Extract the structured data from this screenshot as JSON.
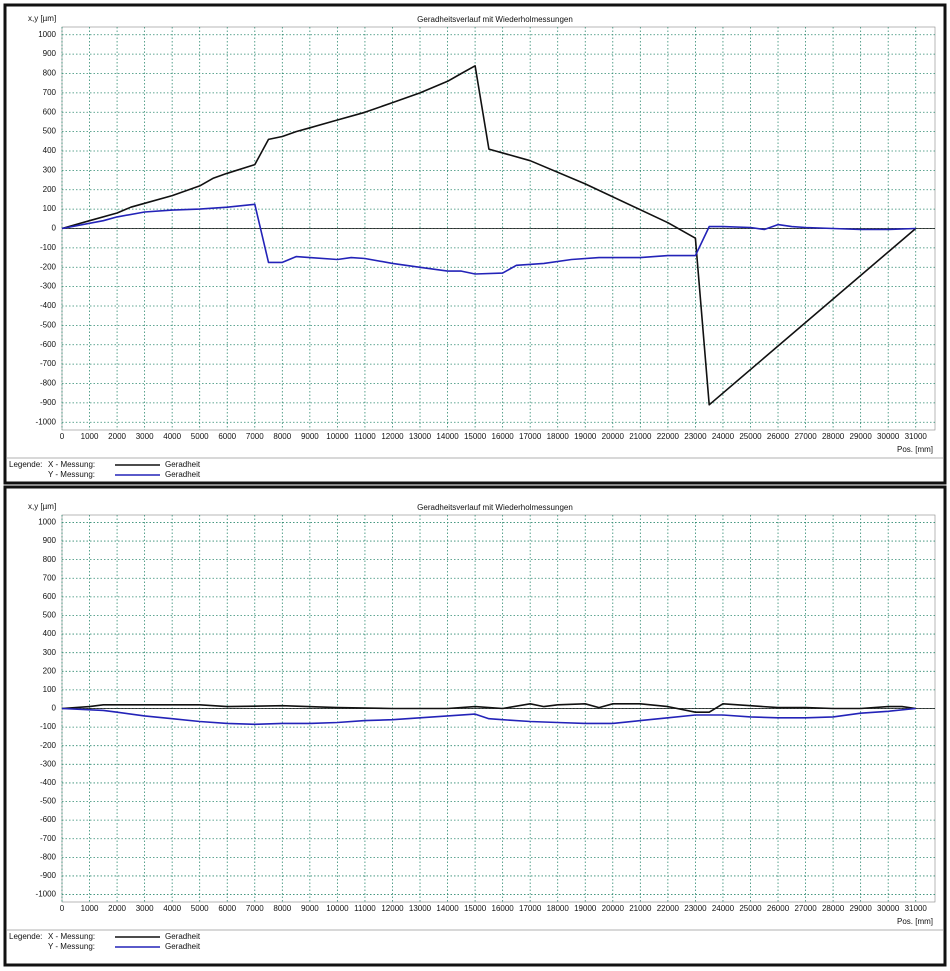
{
  "chart_data": [
    {
      "type": "line",
      "title": "Geradheitsverlauf mit Wiederholmessungen",
      "y_label": "x,y [µm]",
      "x_label": "Pos. [mm]",
      "legend_title": "Legende:",
      "grid": true,
      "xlim": [
        0,
        31700
      ],
      "ylim": [
        -1040,
        1040
      ],
      "xticks": [
        0,
        1000,
        2000,
        3000,
        4000,
        5000,
        6000,
        7000,
        8000,
        9000,
        10000,
        11000,
        12000,
        13000,
        14000,
        15000,
        16000,
        17000,
        18000,
        19000,
        20000,
        21000,
        22000,
        23000,
        24000,
        25000,
        26000,
        27000,
        28000,
        29000,
        30000,
        31000
      ],
      "yticks": [
        -1000,
        -900,
        -800,
        -700,
        -600,
        -500,
        -400,
        -300,
        -200,
        -100,
        0,
        100,
        200,
        300,
        400,
        500,
        600,
        700,
        800,
        900,
        1000
      ],
      "series": [
        {
          "name": "Geradheit",
          "measurement": "X - Messung:",
          "color": "#111111",
          "x": [
            0,
            1000,
            2000,
            2500,
            3000,
            4000,
            5000,
            5500,
            6000,
            7000,
            7500,
            8000,
            8500,
            9000,
            10000,
            11000,
            12000,
            13000,
            14000,
            14500,
            15000,
            15500,
            17000,
            19000,
            22000,
            23000,
            23500,
            31000
          ],
          "values": [
            0,
            40,
            80,
            110,
            130,
            170,
            220,
            260,
            285,
            330,
            460,
            475,
            500,
            520,
            560,
            600,
            650,
            700,
            760,
            800,
            840,
            410,
            350,
            230,
            30,
            -50,
            -910,
            0
          ]
        },
        {
          "name": "Geradheit",
          "measurement": "Y - Messung:",
          "color": "#2323b8",
          "x": [
            0,
            1500,
            2000,
            3000,
            4000,
            5000,
            6000,
            7000,
            7500,
            8000,
            8500,
            9000,
            10000,
            10500,
            11000,
            12000,
            13000,
            14000,
            14500,
            15000,
            16000,
            16500,
            17500,
            18500,
            19500,
            21000,
            22000,
            23000,
            23500,
            24000,
            25000,
            25500,
            26000,
            26500,
            27000,
            28000,
            29000,
            30000,
            31000
          ],
          "values": [
            0,
            40,
            60,
            85,
            95,
            100,
            110,
            125,
            -175,
            -175,
            -145,
            -150,
            -160,
            -150,
            -155,
            -180,
            -200,
            -220,
            -220,
            -235,
            -230,
            -190,
            -180,
            -160,
            -150,
            -150,
            -140,
            -140,
            10,
            10,
            5,
            -5,
            20,
            10,
            5,
            0,
            -5,
            -5,
            0
          ]
        }
      ]
    },
    {
      "type": "line",
      "title": "Geradheitsverlauf mit Wiederholmessungen",
      "y_label": "x,y [µm]",
      "x_label": "Pos. [mm]",
      "legend_title": "Legende:",
      "grid": true,
      "xlim": [
        0,
        31700
      ],
      "ylim": [
        -1040,
        1040
      ],
      "xticks": [
        0,
        1000,
        2000,
        3000,
        4000,
        5000,
        6000,
        7000,
        8000,
        9000,
        10000,
        11000,
        12000,
        13000,
        14000,
        15000,
        16000,
        17000,
        18000,
        19000,
        20000,
        21000,
        22000,
        23000,
        24000,
        25000,
        26000,
        27000,
        28000,
        29000,
        30000,
        31000
      ],
      "yticks": [
        -1000,
        -900,
        -800,
        -700,
        -600,
        -500,
        -400,
        -300,
        -200,
        -100,
        0,
        100,
        200,
        300,
        400,
        500,
        600,
        700,
        800,
        900,
        1000
      ],
      "series": [
        {
          "name": "Geradheit",
          "measurement": "X - Messung:",
          "color": "#111111",
          "x": [
            0,
            1000,
            1500,
            3000,
            5000,
            6000,
            8000,
            10000,
            12000,
            14000,
            15000,
            16000,
            17000,
            17500,
            18000,
            19000,
            19500,
            20000,
            21000,
            22000,
            23000,
            23500,
            24000,
            25000,
            26000,
            27000,
            28000,
            29000,
            30000,
            30500,
            31000
          ],
          "values": [
            0,
            10,
            20,
            20,
            20,
            10,
            15,
            5,
            0,
            0,
            10,
            0,
            25,
            10,
            20,
            25,
            5,
            25,
            25,
            10,
            -20,
            -20,
            25,
            15,
            5,
            5,
            0,
            0,
            10,
            10,
            0
          ]
        },
        {
          "name": "Geradheit",
          "measurement": "Y - Messung:",
          "color": "#2323b8",
          "x": [
            0,
            1500,
            2000,
            3000,
            4000,
            5000,
            6000,
            7000,
            8000,
            9000,
            10000,
            11000,
            12000,
            13000,
            14000,
            15000,
            15500,
            16000,
            17000,
            18000,
            19000,
            20000,
            21000,
            22000,
            23000,
            24000,
            25000,
            26000,
            27000,
            28000,
            29000,
            30000,
            31000
          ],
          "values": [
            0,
            -10,
            -20,
            -40,
            -55,
            -70,
            -80,
            -85,
            -80,
            -80,
            -75,
            -65,
            -60,
            -50,
            -40,
            -30,
            -55,
            -60,
            -70,
            -75,
            -80,
            -80,
            -65,
            -50,
            -35,
            -35,
            -45,
            -50,
            -50,
            -45,
            -25,
            -15,
            0
          ]
        }
      ]
    }
  ]
}
